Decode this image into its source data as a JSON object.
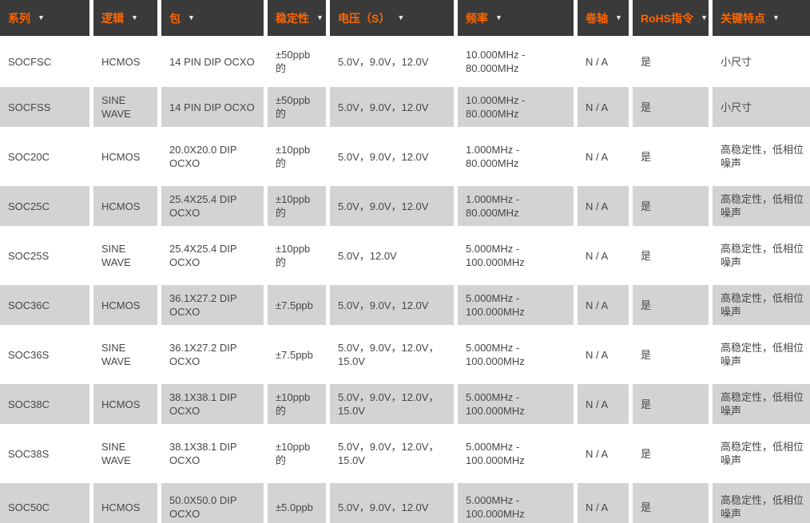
{
  "theme": {
    "header_bg": "#3a3a3a",
    "header_text": "#ff6600",
    "arrow_color": "#ededed",
    "row_bg": "#ffffff",
    "row_alt_bg": "#d2d3d4",
    "cell_text": "#474747"
  },
  "icons": {
    "chevron_down": "▼"
  },
  "table": {
    "columns": [
      {
        "key": "series",
        "label": "系列"
      },
      {
        "key": "logic",
        "label": "逻辑"
      },
      {
        "key": "package",
        "label": "包"
      },
      {
        "key": "stability",
        "label": "稳定性"
      },
      {
        "key": "voltage",
        "label": "电压（S）"
      },
      {
        "key": "frequency",
        "label": "频率"
      },
      {
        "key": "reel",
        "label": "卷轴"
      },
      {
        "key": "rohs",
        "label": "RoHS指令"
      },
      {
        "key": "key-features",
        "label": "关键特点"
      }
    ],
    "rows": [
      [
        "SOCFSC",
        "HCMOS",
        "14 PIN DIP OCXO",
        "±50ppb的",
        "5.0V，9.0V，12.0V",
        "10.000MHz - 80.000MHz",
        "N / A",
        "是",
        "小尺寸"
      ],
      [
        "SOCFSS",
        "SINE WAVE",
        "14 PIN DIP OCXO",
        "±50ppb的",
        "5.0V，9.0V，12.0V",
        "10.000MHz - 80.000MHz",
        "N / A",
        "是",
        "小尺寸"
      ],
      [
        "SOC20C",
        "HCMOS",
        "20.0X20.0 DIP OCXO",
        "±10ppb的",
        "5.0V，9.0V，12.0V",
        "1.000MHz - 80.000MHz",
        "N / A",
        "是",
        "高稳定性，低相位噪声"
      ],
      [
        "SOC25C",
        "HCMOS",
        "25.4X25.4 DIP OCXO",
        "±10ppb的",
        "5.0V，9.0V，12.0V",
        "1.000MHz - 80.000MHz",
        "N / A",
        "是",
        "高稳定性，低相位噪声"
      ],
      [
        "SOC25S",
        "SINE WAVE",
        "25.4X25.4 DIP OCXO",
        "±10ppb的",
        "5.0V，12.0V",
        "5.000MHz - 100.000MHz",
        "N / A",
        "是",
        "高稳定性，低相位噪声"
      ],
      [
        "SOC36C",
        "HCMOS",
        "36.1X27.2 DIP OCXO",
        "±7.5ppb",
        "5.0V，9.0V，12.0V",
        "5.000MHz - 100.000MHz",
        "N / A",
        "是",
        "高稳定性，低相位噪声"
      ],
      [
        "SOC36S",
        "SINE WAVE",
        "36.1X27.2 DIP OCXO",
        "±7.5ppb",
        "5.0V，9.0V，12.0V，15.0V",
        "5.000MHz - 100.000MHz",
        "N / A",
        "是",
        "高稳定性，低相位噪声"
      ],
      [
        "SOC38C",
        "HCMOS",
        "38.1X38.1 DIP OCXO",
        "±10ppb的",
        "5.0V，9.0V，12.0V，15.0V",
        "5.000MHz - 100.000MHz",
        "N / A",
        "是",
        "高稳定性，低相位噪声"
      ],
      [
        "SOC38S",
        "SINE WAVE",
        "38.1X38.1 DIP OCXO",
        "±10ppb的",
        "5.0V，9.0V，12.0V，15.0V",
        "5.000MHz - 100.000MHz",
        "N / A",
        "是",
        "高稳定性，低相位噪声"
      ],
      [
        "SOC50C",
        "HCMOS",
        "50.0X50.0 DIP OCXO",
        "±5.0ppb",
        "5.0V，9.0V，12.0V",
        "5.000MHz - 100.000MHz",
        "N / A",
        "是",
        "高稳定性，低相位噪声"
      ]
    ]
  }
}
